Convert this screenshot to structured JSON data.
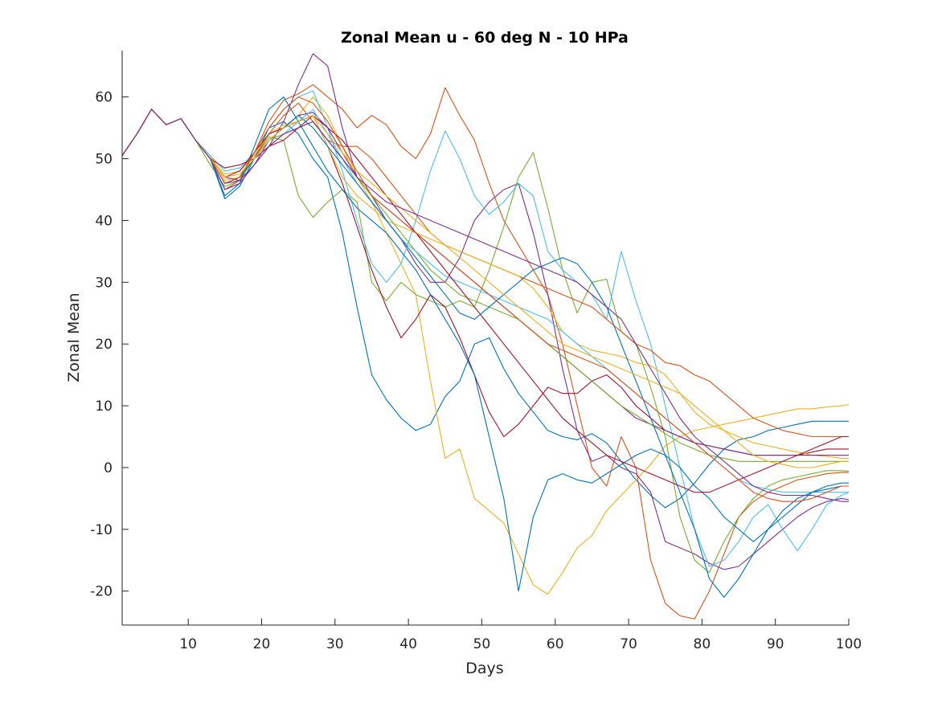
{
  "chart_data": {
    "type": "line",
    "title": "Zonal Mean u - 60 deg N - 10 HPa",
    "xlabel": "Days",
    "ylabel": "Zonal Mean",
    "xlim": [
      1,
      100
    ],
    "ylim": [
      -25.5,
      67.5
    ],
    "xticks": [
      10,
      20,
      30,
      40,
      50,
      60,
      70,
      80,
      90,
      100
    ],
    "yticks": [
      -20,
      -10,
      0,
      10,
      20,
      30,
      40,
      50,
      60
    ],
    "grid": false,
    "box": false,
    "legend": null,
    "x": [
      1,
      3,
      5,
      7,
      9,
      11,
      13,
      15,
      17,
      19,
      21,
      23,
      25,
      27,
      29,
      31,
      33,
      35,
      37,
      39,
      41,
      43,
      45,
      47,
      49,
      51,
      53,
      55,
      57,
      59,
      61,
      63,
      65,
      67,
      69,
      71,
      73,
      75,
      77,
      79,
      81,
      83,
      85,
      87,
      89,
      91,
      93,
      95,
      97,
      99,
      100
    ],
    "series": [
      {
        "color": "#0072BD",
        "values": [
          50.5,
          54.0,
          58.0,
          55.5,
          56.5,
          53.0,
          50.0,
          43.5,
          45.5,
          50.0,
          55.0,
          56.0,
          54.0,
          50.0,
          47.0,
          38.0,
          26.0,
          15.0,
          11.0,
          8.0,
          6.0,
          7.0,
          11.5,
          14.0,
          20.0,
          21.0,
          16.0,
          12.0,
          9.0,
          6.0,
          5.0,
          4.5,
          5.5,
          4.0,
          1.0,
          -2.0,
          -4.5,
          -6.5,
          -5.0,
          -2.5,
          0.5,
          3.0,
          4.5,
          5.0,
          6.0,
          6.5,
          7.0,
          7.5,
          7.5,
          7.5,
          7.5
        ]
      },
      {
        "color": "#D95319",
        "values": [
          50.5,
          54.0,
          58.0,
          55.5,
          56.5,
          53.0,
          50.0,
          45.0,
          46.5,
          51.0,
          56.0,
          59.5,
          60.5,
          62.0,
          60.0,
          58.0,
          55.0,
          57.0,
          55.5,
          52.0,
          50.0,
          54.0,
          61.5,
          57.0,
          53.0,
          46.0,
          40.0,
          36.0,
          32.0,
          28.0,
          20.0,
          10.0,
          0.0,
          -3.0,
          5.0,
          0.0,
          -15.0,
          -22.0,
          -24.0,
          -24.5,
          -20.0,
          -14.0,
          -8.0,
          -5.5,
          -4.0,
          -3.0,
          -2.0,
          -1.5,
          -1.0,
          -0.8,
          -0.8
        ]
      },
      {
        "color": "#EDB120",
        "values": [
          50.5,
          54.0,
          58.0,
          55.5,
          56.5,
          53.0,
          50.5,
          46.5,
          47.0,
          50.0,
          53.0,
          55.0,
          57.0,
          60.0,
          57.0,
          52.0,
          47.0,
          43.0,
          38.0,
          33.0,
          28.0,
          14.0,
          1.5,
          3.0,
          -5.0,
          -7.0,
          -9.0,
          -14.0,
          -19.0,
          -20.5,
          -17.0,
          -13.0,
          -11.0,
          -7.0,
          -4.5,
          -2.0,
          0.5,
          3.5,
          5.0,
          6.0,
          6.5,
          7.0,
          7.5,
          8.0,
          8.5,
          9.0,
          9.5,
          9.5,
          9.8,
          10.0,
          10.2
        ]
      },
      {
        "color": "#7E2F8E",
        "values": [
          50.5,
          54.0,
          58.0,
          55.5,
          56.5,
          53.0,
          50.0,
          47.0,
          46.5,
          49.0,
          52.0,
          56.0,
          62.0,
          67.0,
          65.0,
          55.0,
          47.0,
          44.0,
          40.0,
          37.0,
          33.0,
          30.0,
          30.0,
          34.0,
          40.0,
          43.0,
          45.0,
          46.0,
          38.0,
          28.0,
          16.0,
          6.0,
          1.0,
          2.0,
          0.0,
          -1.0,
          -4.0,
          -12.0,
          -13.0,
          -14.0,
          -15.5,
          -16.5,
          -16.0,
          -14.0,
          -12.0,
          -10.0,
          -8.0,
          -6.5,
          -5.5,
          -5.0,
          -5.2
        ]
      },
      {
        "color": "#77AC30",
        "values": [
          50.5,
          54.0,
          58.0,
          55.5,
          56.5,
          53.0,
          49.0,
          45.5,
          46.5,
          50.0,
          53.5,
          53.0,
          44.0,
          40.5,
          43.0,
          45.0,
          43.0,
          30.0,
          27.0,
          30.0,
          28.0,
          27.0,
          26.0,
          27.0,
          26.0,
          32.0,
          39.0,
          47.0,
          51.0,
          42.0,
          32.0,
          25.0,
          30.0,
          30.5,
          22.0,
          20.0,
          13.0,
          5.0,
          -8.0,
          -15.0,
          -17.0,
          -12.0,
          -8.0,
          -5.0,
          -3.0,
          -2.0,
          -1.5,
          -1.0,
          -0.5,
          -0.5,
          -0.6
        ]
      },
      {
        "color": "#4DBEEE",
        "values": [
          50.5,
          54.0,
          58.0,
          55.5,
          56.5,
          53.0,
          50.5,
          48.0,
          48.5,
          51.0,
          55.0,
          58.0,
          60.0,
          61.0,
          55.0,
          48.0,
          40.0,
          33.0,
          30.0,
          33.0,
          40.0,
          48.0,
          54.5,
          50.0,
          44.0,
          41.0,
          43.0,
          46.0,
          44.0,
          35.0,
          32.0,
          30.0,
          28.0,
          24.0,
          35.0,
          27.0,
          20.0,
          10.0,
          0.0,
          -10.0,
          -16.0,
          -15.0,
          -12.0,
          -8.0,
          -6.0,
          -10.0,
          -13.5,
          -10.0,
          -6.0,
          -4.5,
          -4.0
        ]
      },
      {
        "color": "#A2142F",
        "values": [
          50.5,
          54.0,
          58.0,
          55.5,
          56.5,
          53.0,
          50.0,
          48.5,
          49.0,
          50.0,
          52.0,
          53.0,
          55.0,
          57.0,
          52.0,
          46.0,
          39.0,
          32.0,
          26.0,
          21.0,
          24.0,
          28.0,
          26.0,
          21.0,
          15.0,
          9.0,
          5.0,
          7.0,
          10.0,
          13.0,
          12.0,
          12.0,
          14.0,
          15.0,
          13.0,
          10.0,
          8.0,
          6.0,
          5.0,
          4.0,
          3.5,
          3.0,
          2.5,
          2.0,
          2.0,
          2.0,
          2.0,
          2.5,
          3.0,
          3.0,
          3.0
        ]
      },
      {
        "color": "#0072BD",
        "values": [
          50.5,
          54.0,
          58.0,
          55.5,
          56.5,
          53.0,
          50.0,
          44.0,
          46.0,
          52.0,
          58.0,
          60.0,
          56.0,
          52.0,
          48.0,
          45.0,
          42.0,
          40.0,
          38.0,
          35.0,
          32.0,
          28.0,
          24.0,
          20.0,
          15.0,
          5.0,
          -5.0,
          -20.0,
          -8.0,
          -2.0,
          -1.0,
          -2.0,
          -2.5,
          -1.0,
          0.5,
          2.0,
          3.0,
          2.0,
          0.0,
          -3.0,
          -5.0,
          -8.0,
          -10.0,
          -12.0,
          -10.0,
          -8.0,
          -6.0,
          -4.0,
          -3.0,
          -2.5,
          -2.5
        ]
      },
      {
        "color": "#D95319",
        "values": [
          50.5,
          54.0,
          58.0,
          55.5,
          56.5,
          53.0,
          50.0,
          46.0,
          47.0,
          50.0,
          54.0,
          57.0,
          59.0,
          56.0,
          53.0,
          52.0,
          52.0,
          50.0,
          47.0,
          44.0,
          41.0,
          38.0,
          36.0,
          35.0,
          34.0,
          33.0,
          32.0,
          31.0,
          30.0,
          29.0,
          28.0,
          27.0,
          26.0,
          24.0,
          22.0,
          20.0,
          19.0,
          17.0,
          16.5,
          15.0,
          14.0,
          12.0,
          10.0,
          8.0,
          7.0,
          6.0,
          5.5,
          5.0,
          5.0,
          5.0,
          5.0
        ]
      },
      {
        "color": "#EDB120",
        "values": [
          50.5,
          54.0,
          58.0,
          55.5,
          56.5,
          53.0,
          50.0,
          47.5,
          48.0,
          50.5,
          54.0,
          55.5,
          56.0,
          57.0,
          52.0,
          47.0,
          44.0,
          42.0,
          40.0,
          39.0,
          38.0,
          37.0,
          36.0,
          35.0,
          34.0,
          33.0,
          32.0,
          31.0,
          29.0,
          26.0,
          22.0,
          20.0,
          19.0,
          18.5,
          18.0,
          17.0,
          16.5,
          15.0,
          12.0,
          9.0,
          7.0,
          6.0,
          5.0,
          4.0,
          3.5,
          3.0,
          2.5,
          2.0,
          1.8,
          1.5,
          1.5
        ]
      },
      {
        "color": "#7E2F8E",
        "values": [
          50.5,
          54.0,
          58.0,
          55.5,
          56.5,
          53.0,
          50.0,
          46.0,
          46.5,
          49.0,
          53.0,
          55.0,
          57.0,
          57.5,
          55.0,
          51.0,
          47.0,
          44.0,
          42.0,
          40.0,
          38.0,
          36.0,
          34.0,
          32.0,
          30.0,
          28.0,
          26.0,
          24.0,
          22.0,
          20.0,
          18.0,
          16.0,
          14.0,
          12.0,
          10.0,
          8.0,
          7.0,
          6.0,
          5.0,
          4.0,
          3.5,
          3.0,
          2.5,
          2.0,
          2.0,
          2.0,
          2.0,
          2.0,
          2.0,
          2.0,
          2.0
        ]
      },
      {
        "color": "#77AC30",
        "values": [
          50.5,
          54.0,
          58.0,
          55.5,
          56.5,
          53.0,
          50.0,
          46.0,
          47.0,
          50.0,
          53.0,
          54.0,
          55.0,
          56.0,
          53.0,
          50.0,
          47.0,
          44.0,
          41.0,
          38.0,
          35.0,
          32.0,
          30.0,
          28.0,
          27.0,
          26.0,
          25.0,
          24.0,
          22.0,
          20.0,
          18.0,
          16.0,
          14.0,
          12.0,
          10.0,
          8.5,
          7.0,
          5.5,
          4.0,
          3.0,
          2.0,
          1.5,
          1.0,
          1.0,
          1.0,
          1.0,
          1.0,
          1.0,
          1.0,
          1.0,
          1.0
        ]
      },
      {
        "color": "#4DBEEE",
        "values": [
          50.5,
          54.0,
          58.0,
          55.5,
          56.5,
          53.0,
          50.0,
          45.0,
          46.0,
          49.0,
          52.0,
          54.0,
          56.0,
          58.0,
          54.0,
          50.0,
          46.0,
          43.0,
          40.0,
          37.0,
          35.0,
          33.0,
          31.0,
          30.0,
          29.0,
          28.0,
          27.0,
          26.0,
          25.0,
          24.0,
          22.0,
          20.0,
          18.0,
          16.0,
          14.0,
          12.0,
          10.0,
          8.0,
          6.0,
          4.0,
          2.0,
          0.0,
          -2.0,
          -3.0,
          -3.5,
          -4.0,
          -4.0,
          -4.0,
          -4.0,
          -4.0,
          -4.0
        ]
      },
      {
        "color": "#A2142F",
        "values": [
          50.5,
          54.0,
          58.0,
          55.5,
          56.5,
          53.0,
          50.0,
          47.0,
          48.0,
          51.0,
          54.0,
          55.0,
          56.0,
          57.0,
          55.0,
          53.0,
          50.0,
          47.0,
          44.0,
          41.0,
          38.0,
          35.0,
          32.0,
          29.0,
          26.0,
          23.0,
          20.0,
          17.0,
          14.0,
          11.0,
          8.0,
          6.0,
          4.0,
          2.0,
          1.0,
          0.0,
          -1.0,
          -2.0,
          -3.0,
          -4.0,
          -4.0,
          -3.0,
          -2.0,
          -1.0,
          0.0,
          1.0,
          2.0,
          3.0,
          4.0,
          5.0,
          5.0
        ]
      },
      {
        "color": "#0072BD",
        "values": [
          50.5,
          54.0,
          58.0,
          55.5,
          56.5,
          53.0,
          50.0,
          46.0,
          47.0,
          50.0,
          53.0,
          55.0,
          57.0,
          55.0,
          52.0,
          49.0,
          46.0,
          43.0,
          40.0,
          37.0,
          34.0,
          31.0,
          28.0,
          25.0,
          24.0,
          26.0,
          28.0,
          30.0,
          32.0,
          33.0,
          34.0,
          33.0,
          30.0,
          26.0,
          20.0,
          14.0,
          8.0,
          2.0,
          -4.0,
          -10.0,
          -18.0,
          -21.0,
          -18.0,
          -14.0,
          -10.0,
          -7.0,
          -5.0,
          -4.0,
          -3.5,
          -3.0,
          -3.0
        ]
      },
      {
        "color": "#D95319",
        "values": [
          50.5,
          54.0,
          58.0,
          55.5,
          56.5,
          53.0,
          50.0,
          46.0,
          47.0,
          51.0,
          55.0,
          58.0,
          60.0,
          59.0,
          56.0,
          52.0,
          48.0,
          44.0,
          42.0,
          40.0,
          38.0,
          36.0,
          34.0,
          32.0,
          30.0,
          28.0,
          26.0,
          24.0,
          22.0,
          20.0,
          19.0,
          18.0,
          17.0,
          16.0,
          14.0,
          12.0,
          10.0,
          8.0,
          6.0,
          4.0,
          2.0,
          0.0,
          -2.0,
          -4.0,
          -5.0,
          -5.5,
          -5.5,
          -5.0,
          -4.0,
          -3.0,
          -3.0
        ]
      },
      {
        "color": "#EDB120",
        "values": [
          50.5,
          54.0,
          58.0,
          55.5,
          56.5,
          53.0,
          50.0,
          47.0,
          47.5,
          50.0,
          53.0,
          55.0,
          56.0,
          57.0,
          54.0,
          51.0,
          48.0,
          46.0,
          44.0,
          42.0,
          40.0,
          38.0,
          36.0,
          34.0,
          32.0,
          30.0,
          28.0,
          26.0,
          24.0,
          22.0,
          20.0,
          19.0,
          18.0,
          17.0,
          16.0,
          15.0,
          14.0,
          13.0,
          12.0,
          10.0,
          8.0,
          6.0,
          4.0,
          2.0,
          1.0,
          0.5,
          0.0,
          0.0,
          0.5,
          1.0,
          1.0
        ]
      },
      {
        "color": "#7E2F8E",
        "values": [
          50.5,
          54.0,
          58.0,
          55.5,
          56.5,
          53.0,
          50.0,
          45.0,
          46.0,
          49.0,
          52.0,
          54.0,
          55.0,
          56.0,
          53.0,
          50.0,
          47.0,
          45.0,
          43.0,
          42.0,
          41.0,
          40.0,
          39.0,
          38.0,
          37.0,
          36.0,
          35.0,
          34.0,
          33.0,
          32.0,
          31.0,
          30.0,
          28.0,
          26.0,
          24.0,
          20.0,
          16.0,
          12.0,
          8.0,
          5.0,
          3.0,
          1.0,
          -1.0,
          -3.0,
          -4.0,
          -4.5,
          -4.5,
          -4.5,
          -5.0,
          -5.5,
          -5.5
        ]
      }
    ]
  }
}
